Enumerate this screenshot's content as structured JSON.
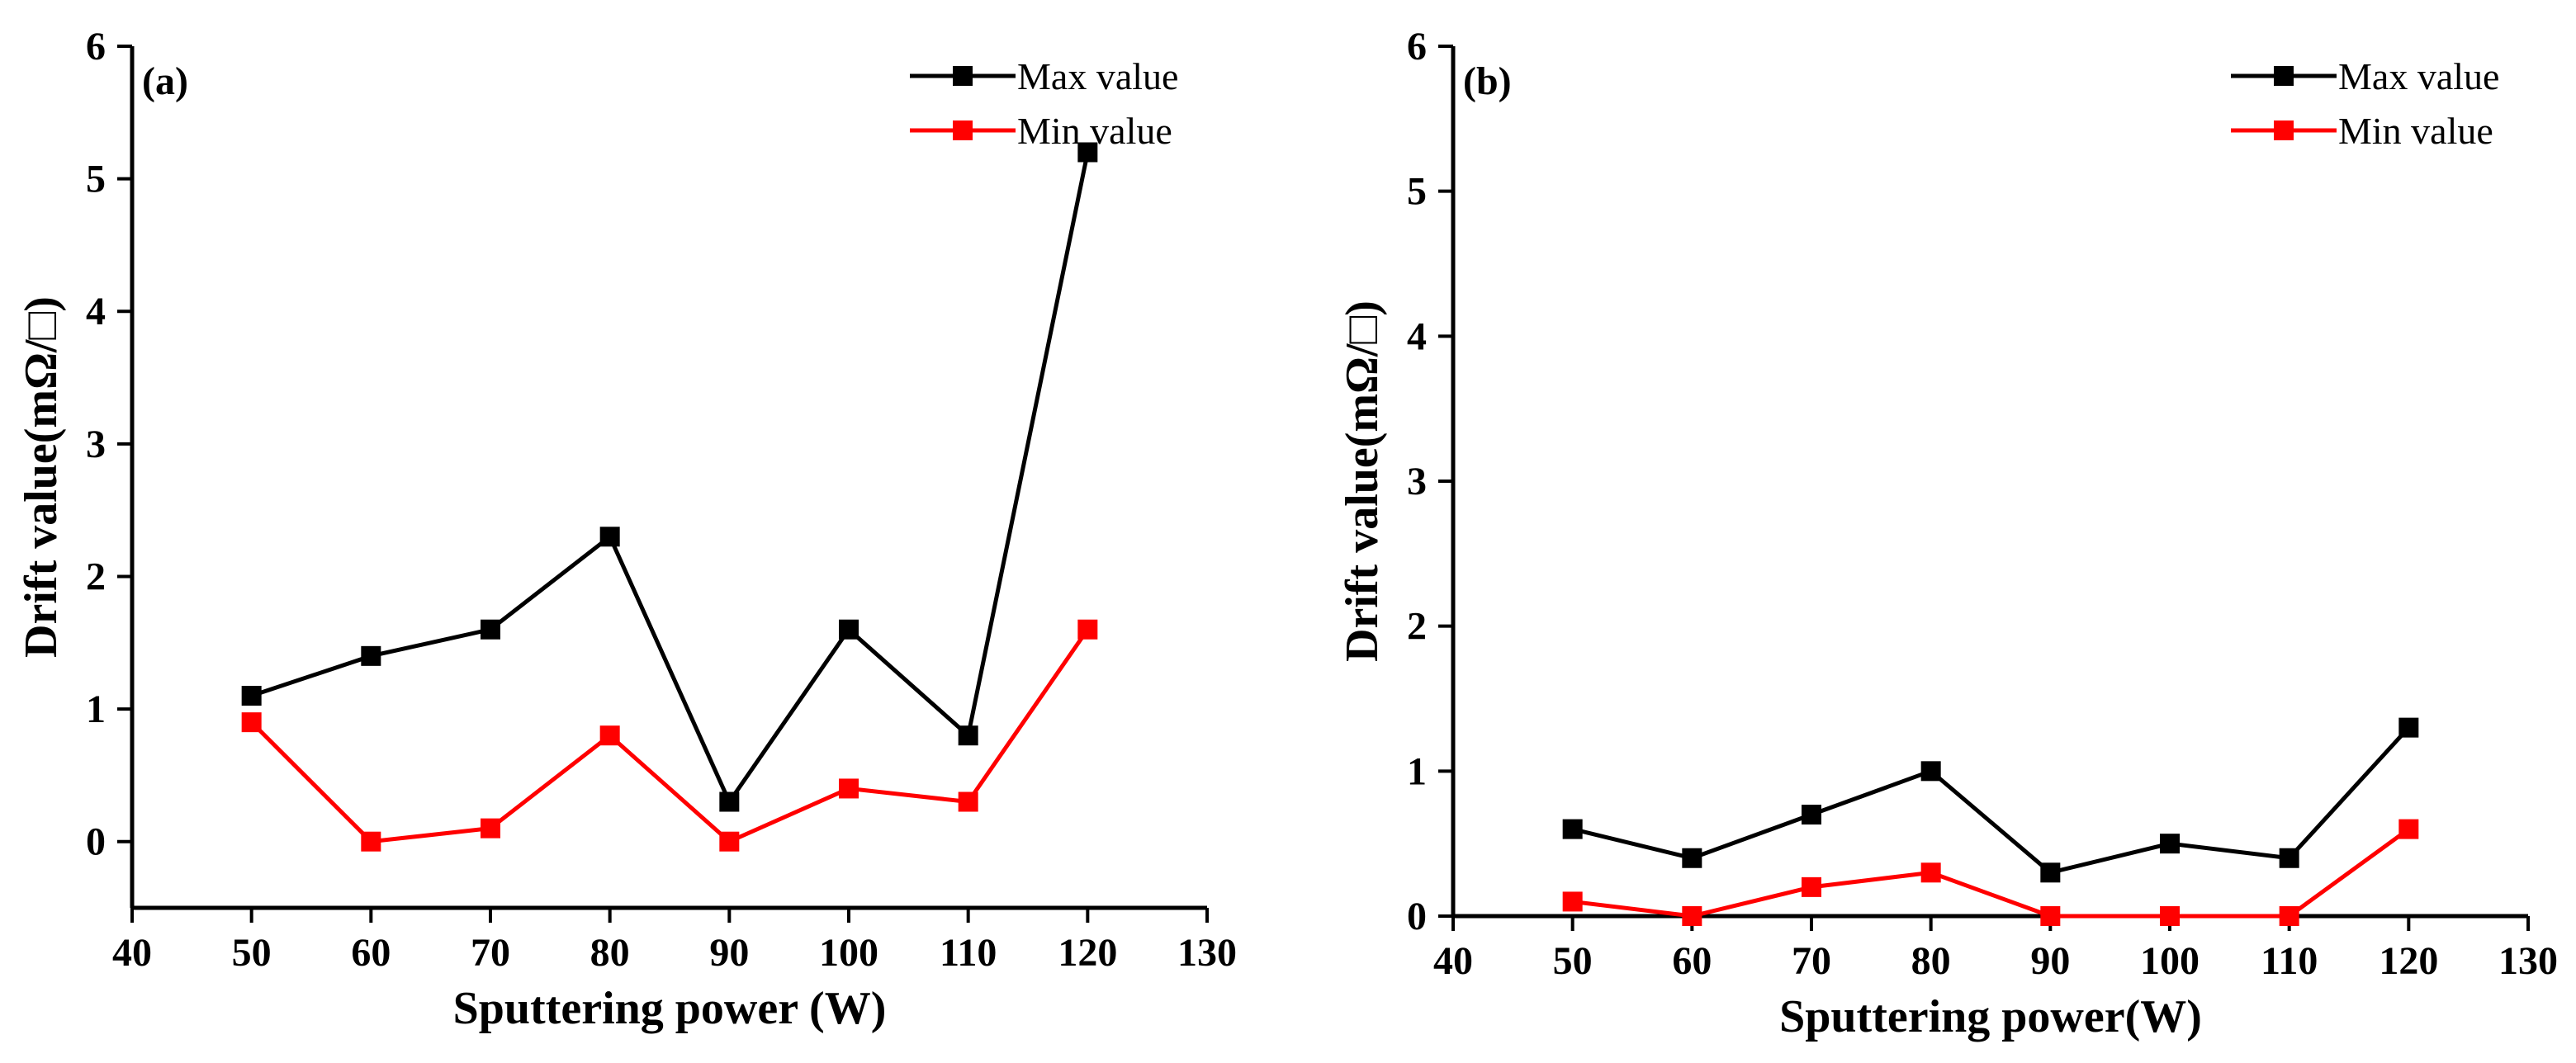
{
  "chart_data": [
    {
      "type": "line",
      "panel_label": "(a)",
      "xlabel": "Sputtering power (W)",
      "ylabel": "Drift value(mΩ/□)",
      "xlim": [
        40,
        130
      ],
      "ylim": [
        -0.5,
        6
      ],
      "xticks": [
        "40",
        "50",
        "60",
        "70",
        "80",
        "90",
        "100",
        "110",
        "120",
        "130"
      ],
      "yticks": [
        "0",
        "1",
        "2",
        "3",
        "4",
        "5",
        "6"
      ],
      "legend_position": "top-right",
      "x": [
        50,
        60,
        70,
        80,
        90,
        100,
        110,
        120
      ],
      "series": [
        {
          "name": "Max value",
          "color": "#000000",
          "values": [
            1.1,
            1.4,
            1.6,
            2.3,
            0.3,
            1.6,
            0.8,
            5.2
          ]
        },
        {
          "name": "Min value",
          "color": "#ff0000",
          "values": [
            0.9,
            0.0,
            0.1,
            0.8,
            0.0,
            0.4,
            0.3,
            1.6
          ]
        }
      ]
    },
    {
      "type": "line",
      "panel_label": "(b)",
      "xlabel": "Sputtering power(W)",
      "ylabel": "Drift value(mΩ/□)",
      "xlim": [
        40,
        130
      ],
      "ylim": [
        0,
        6
      ],
      "xticks": [
        "40",
        "50",
        "60",
        "70",
        "80",
        "90",
        "100",
        "110",
        "120",
        "130"
      ],
      "yticks": [
        "0",
        "1",
        "2",
        "3",
        "4",
        "5",
        "6"
      ],
      "legend_position": "top-right",
      "x": [
        50,
        60,
        70,
        80,
        90,
        100,
        110,
        120
      ],
      "series": [
        {
          "name": "Max value",
          "color": "#000000",
          "values": [
            0.6,
            0.4,
            0.7,
            1.0,
            0.3,
            0.5,
            0.4,
            1.3
          ]
        },
        {
          "name": "Min value",
          "color": "#ff0000",
          "values": [
            0.1,
            0.0,
            0.2,
            0.3,
            0.0,
            0.0,
            0.0,
            0.6
          ]
        }
      ]
    }
  ]
}
